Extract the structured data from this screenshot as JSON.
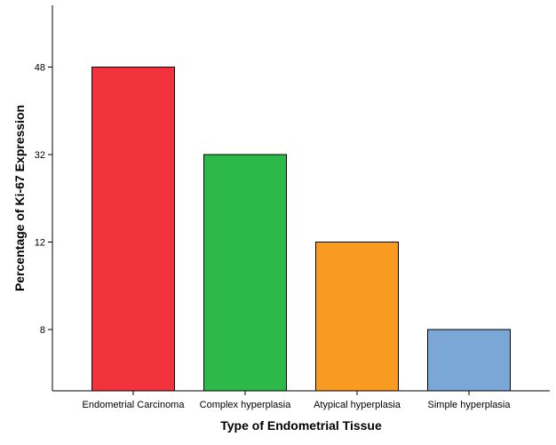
{
  "chart_data": {
    "type": "bar",
    "title": "",
    "xlabel": "Type of Endometrial Tissue",
    "ylabel": "Percentage of Ki-67 Expression",
    "categories": [
      "Endometrial Carcinoma",
      "Complex hyperplasia",
      "Atypical hyperplasia",
      "Simple hyperplasia"
    ],
    "values": [
      48,
      32,
      12,
      8
    ],
    "y_tick_labels": [
      "8",
      "12",
      "32",
      "48"
    ],
    "colors": [
      "#f2323c",
      "#2db84a",
      "#f99b21",
      "#7ba7d7"
    ],
    "grid": false,
    "legend": "none"
  }
}
